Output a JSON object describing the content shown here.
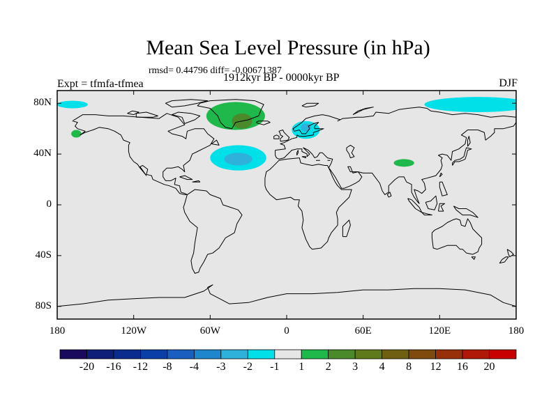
{
  "title": "Mean Sea Level Pressure (in hPa)",
  "stats": "rmsd= 0.44796 diff= -0.00671387",
  "period": "1912kyr BP - 0000kyr BP",
  "experiment": "Expt = tfmfa-tfmea",
  "season": "DJF",
  "map": {
    "projection": "cylindrical-equidistant",
    "lon_range": [
      -180,
      180
    ],
    "lat_range": [
      -90,
      90
    ],
    "background_color": "#e6e6e6",
    "coastline_color": "#000000",
    "y_ticks": [
      {
        "label": "80N",
        "lat": 80
      },
      {
        "label": "40N",
        "lat": 40
      },
      {
        "label": "0",
        "lat": 0
      },
      {
        "label": "40S",
        "lat": -40
      },
      {
        "label": "80S",
        "lat": -80
      }
    ],
    "x_ticks": [
      {
        "label": "180",
        "lon": -180
      },
      {
        "label": "120W",
        "lon": -120
      },
      {
        "label": "60W",
        "lon": -60
      },
      {
        "label": "0",
        "lon": 0
      },
      {
        "label": "60E",
        "lon": 60
      },
      {
        "label": "120E",
        "lon": 120
      },
      {
        "label": "180",
        "lon": 180
      }
    ]
  },
  "colorbar": {
    "colors": [
      "#1a0a5e",
      "#0d1f78",
      "#0a2c8f",
      "#0a3fa8",
      "#1a5ec0",
      "#1e86cc",
      "#2eb2dc",
      "#00e0e8",
      "#e6e6e6",
      "#1fb84a",
      "#4a8a2a",
      "#5e7a1a",
      "#6e6010",
      "#7e4a0e",
      "#98300a",
      "#b01808",
      "#c80000"
    ],
    "labels": [
      "-20",
      "-16",
      "-12",
      "-8",
      "-4",
      "-3",
      "-2",
      "-1",
      "1",
      "2",
      "3",
      "4",
      "8",
      "12",
      "16",
      "20"
    ]
  },
  "anomalies": [
    {
      "name": "north-atlantic-low",
      "class": -2,
      "color": "#00e0e8",
      "center": [
        -38,
        37
      ],
      "radius": [
        22,
        10
      ]
    },
    {
      "name": "north-atlantic-low-core",
      "class": -3,
      "color": "#2eb2dc",
      "center": [
        -38,
        36
      ],
      "radius": [
        11,
        5
      ]
    },
    {
      "name": "europe-low",
      "class": -1,
      "color": "#00e0e8",
      "center": [
        15,
        59
      ],
      "radius": [
        11,
        7
      ]
    },
    {
      "name": "europe-low-core",
      "class": -2,
      "color": "#2eb2dc",
      "center": [
        15,
        61
      ],
      "radius": [
        4,
        3
      ]
    },
    {
      "name": "arctic-siberia-low",
      "class": -1,
      "color": "#00e0e8",
      "center": [
        150,
        79
      ],
      "radius": [
        42,
        6
      ]
    },
    {
      "name": "chukchi-low",
      "class": -1,
      "color": "#00e0e8",
      "center": [
        -168,
        79
      ],
      "radius": [
        12,
        3
      ]
    },
    {
      "name": "greenland-high",
      "class": 1,
      "color": "#1fb84a",
      "center": [
        -40,
        70
      ],
      "radius": [
        23,
        11
      ]
    },
    {
      "name": "greenland-high-core",
      "class": 2,
      "color": "#4a8a2a",
      "center": [
        -35,
        66
      ],
      "radius": [
        8,
        6
      ]
    },
    {
      "name": "tibet-high",
      "class": 1,
      "color": "#1fb84a",
      "center": [
        92,
        33
      ],
      "radius": [
        8,
        3
      ]
    },
    {
      "name": "alaska-high",
      "class": 1,
      "color": "#1fb84a",
      "center": [
        -165,
        56
      ],
      "radius": [
        4,
        3
      ]
    }
  ]
}
